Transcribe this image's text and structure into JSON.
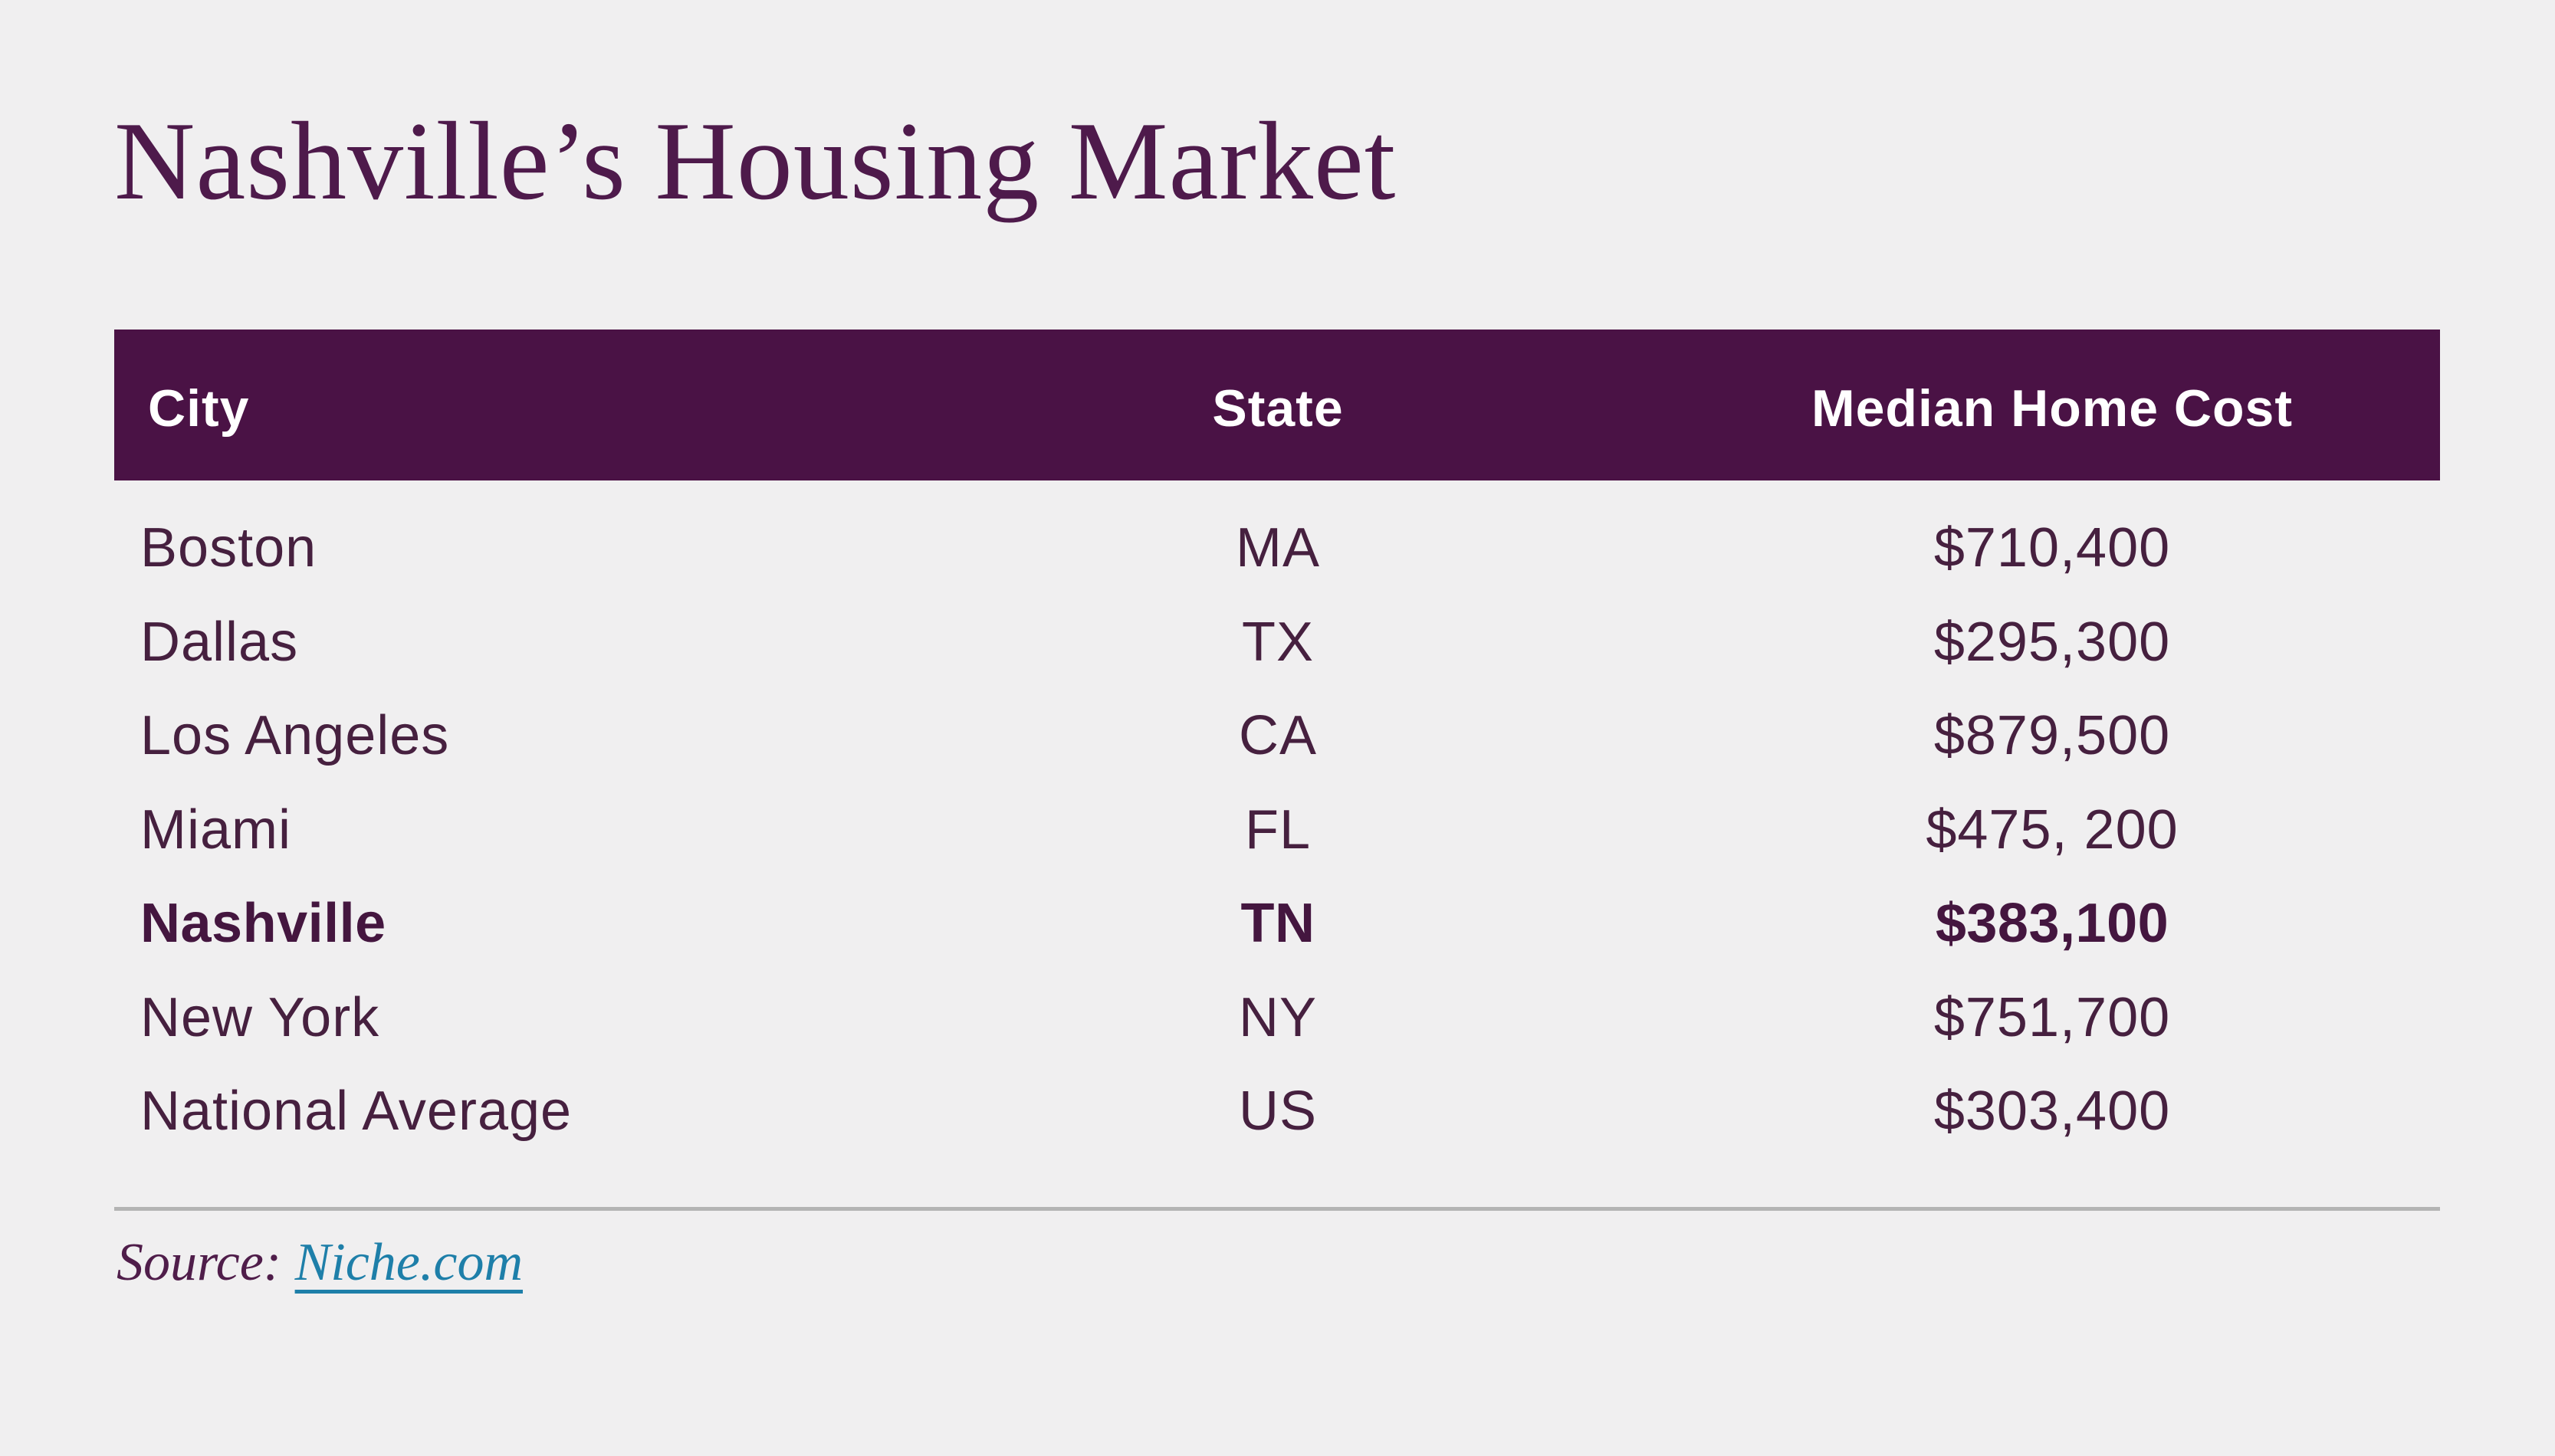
{
  "chart_data": {
    "type": "table",
    "title": "Nashville’s Housing Market",
    "columns": [
      "City",
      "State",
      "Median Home Cost"
    ],
    "rows": [
      {
        "city": "Boston",
        "state": "MA",
        "median_home_cost": "$710,400",
        "bold": false
      },
      {
        "city": "Dallas",
        "state": "TX",
        "median_home_cost": "$295,300",
        "bold": false
      },
      {
        "city": "Los Angeles",
        "state": "CA",
        "median_home_cost": "$879,500",
        "bold": false
      },
      {
        "city": "Miami",
        "state": "FL",
        "median_home_cost": "$475, 200",
        "bold": false
      },
      {
        "city": "Nashville",
        "state": "TN",
        "median_home_cost": "$383,100",
        "bold": true
      },
      {
        "city": "New York",
        "state": "NY",
        "median_home_cost": "$751,700",
        "bold": false
      },
      {
        "city": "National Average",
        "state": "US",
        "median_home_cost": "$303,400",
        "bold": false
      }
    ],
    "highlighted_row": "Nashville",
    "legend_position": "none",
    "grid": false
  },
  "source": {
    "label": "Source:",
    "link_text": "Niche.com"
  },
  "colors": {
    "page_bg": "#f0eff0",
    "header_bg": "#4a1245",
    "header_text": "#ffffff",
    "title_color": "#4e1a4b",
    "row_text": "#46203f",
    "highlight_text": "#44163f",
    "divider_color": "#b4b4b4",
    "source_color": "#4f1d4a",
    "link_color": "#1e7fa9"
  }
}
